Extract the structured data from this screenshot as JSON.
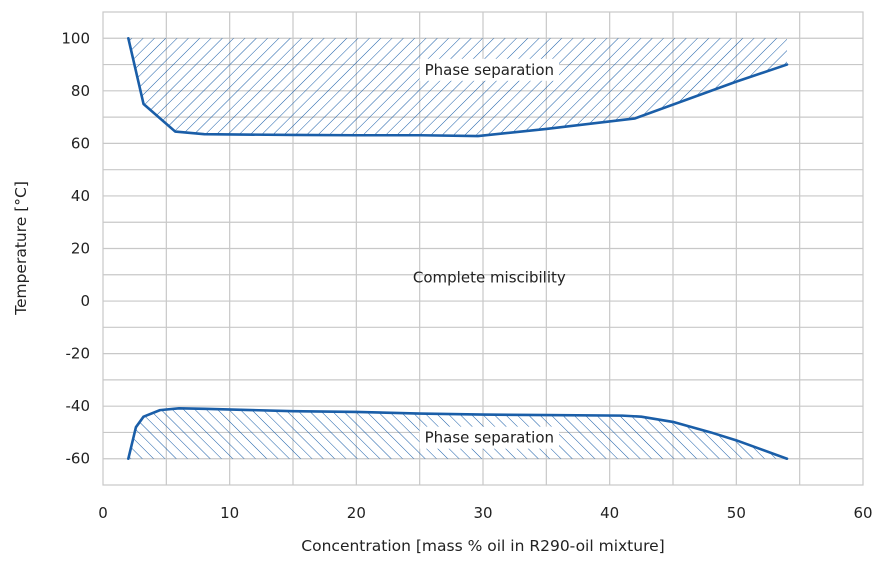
{
  "colors": {
    "curve": "#1a5ea8",
    "hatch": "#1a5ea8",
    "grid": "#c8c8c8",
    "label_bg": "#ffffff"
  },
  "chart_data": {
    "type": "area",
    "title": "",
    "xlabel": "Concentration [mass % oil in R290-oil mixture]",
    "ylabel": "Temperature [°C]",
    "xlim": [
      0,
      60
    ],
    "ylim": [
      -70,
      110
    ],
    "grid": true,
    "x_ticks": [
      0,
      10,
      20,
      30,
      40,
      50,
      60
    ],
    "x_tick_labels": [
      "0",
      "10",
      "20",
      "30",
      "40",
      "50",
      "60"
    ],
    "y_ticks": [
      100,
      80,
      60,
      40,
      20,
      0,
      -20,
      -40,
      -60
    ],
    "y_tick_labels": [
      "100",
      "80",
      "60",
      "40",
      "20",
      "0",
      "-20",
      "-40",
      "-60"
    ],
    "x_minor_step": 5,
    "y_minor_step": 10,
    "series": [
      {
        "x": [
          2,
          3.2,
          5.7,
          8,
          15,
          20,
          25,
          29.6,
          35,
          42,
          50,
          54
        ],
        "y": [
          100,
          75,
          64.5,
          63.5,
          63.2,
          63.1,
          63.1,
          62.8,
          65.5,
          69.5,
          83.5,
          90
        ]
      },
      {
        "x": [
          2,
          2.6,
          3.2,
          4.5,
          6,
          8,
          15,
          20,
          25,
          30,
          35,
          41,
          42.5,
          45,
          48,
          50,
          54
        ],
        "y": [
          -60,
          -48,
          -44,
          -41.5,
          -40.8,
          -41,
          -41.9,
          -42.2,
          -42.8,
          -43.2,
          -43.4,
          -43.6,
          -44,
          -46,
          -50,
          -53,
          -60
        ]
      }
    ],
    "regions": [
      {
        "label": "Phase separation",
        "hatch": "forward",
        "bound_y": 100,
        "label_x": 30.5,
        "label_y": 88
      },
      {
        "label": "Complete miscibility",
        "hatch": "none",
        "label_x": 30.5,
        "label_y": 9
      },
      {
        "label": "Phase separation",
        "hatch": "back",
        "bound_y": -60,
        "label_x": 30.5,
        "label_y": -52
      }
    ]
  }
}
